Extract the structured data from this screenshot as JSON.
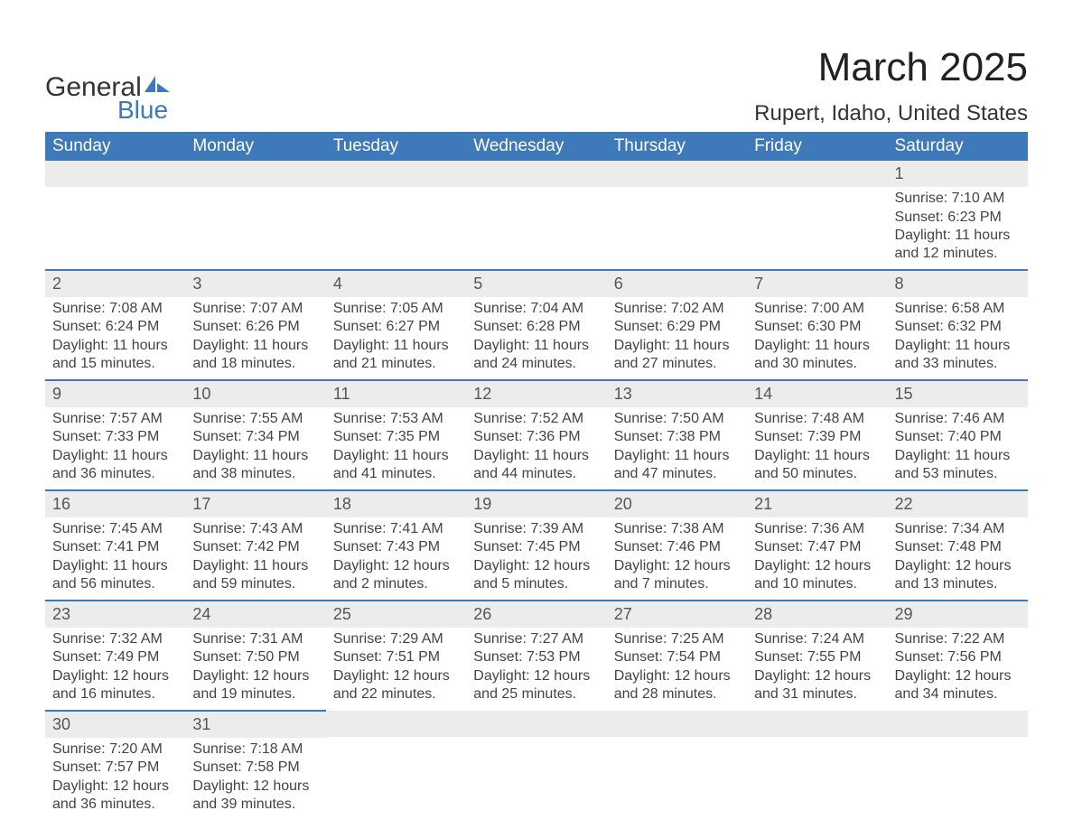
{
  "brand": {
    "name_a": "General",
    "name_b": "Blue",
    "accent": "#3e7ab9"
  },
  "title": "March 2025",
  "location": "Rupert, Idaho, United States",
  "colors": {
    "header_bg": "#3e7ab9",
    "header_text": "#ffffff",
    "daynum_bg": "#ececec",
    "text": "#444444",
    "row_divider": "#3e7ab9",
    "background": "#ffffff"
  },
  "typography": {
    "title_fontsize": 44,
    "location_fontsize": 24,
    "header_fontsize": 19,
    "body_fontsize": 16
  },
  "calendar": {
    "type": "calendar-table",
    "day_headers": [
      "Sunday",
      "Monday",
      "Tuesday",
      "Wednesday",
      "Thursday",
      "Friday",
      "Saturday"
    ],
    "weeks": [
      [
        null,
        null,
        null,
        null,
        null,
        null,
        {
          "n": "1",
          "sunrise": "7:10 AM",
          "sunset": "6:23 PM",
          "daylight": "11 hours and 12 minutes."
        }
      ],
      [
        {
          "n": "2",
          "sunrise": "7:08 AM",
          "sunset": "6:24 PM",
          "daylight": "11 hours and 15 minutes."
        },
        {
          "n": "3",
          "sunrise": "7:07 AM",
          "sunset": "6:26 PM",
          "daylight": "11 hours and 18 minutes."
        },
        {
          "n": "4",
          "sunrise": "7:05 AM",
          "sunset": "6:27 PM",
          "daylight": "11 hours and 21 minutes."
        },
        {
          "n": "5",
          "sunrise": "7:04 AM",
          "sunset": "6:28 PM",
          "daylight": "11 hours and 24 minutes."
        },
        {
          "n": "6",
          "sunrise": "7:02 AM",
          "sunset": "6:29 PM",
          "daylight": "11 hours and 27 minutes."
        },
        {
          "n": "7",
          "sunrise": "7:00 AM",
          "sunset": "6:30 PM",
          "daylight": "11 hours and 30 minutes."
        },
        {
          "n": "8",
          "sunrise": "6:58 AM",
          "sunset": "6:32 PM",
          "daylight": "11 hours and 33 minutes."
        }
      ],
      [
        {
          "n": "9",
          "sunrise": "7:57 AM",
          "sunset": "7:33 PM",
          "daylight": "11 hours and 36 minutes."
        },
        {
          "n": "10",
          "sunrise": "7:55 AM",
          "sunset": "7:34 PM",
          "daylight": "11 hours and 38 minutes."
        },
        {
          "n": "11",
          "sunrise": "7:53 AM",
          "sunset": "7:35 PM",
          "daylight": "11 hours and 41 minutes."
        },
        {
          "n": "12",
          "sunrise": "7:52 AM",
          "sunset": "7:36 PM",
          "daylight": "11 hours and 44 minutes."
        },
        {
          "n": "13",
          "sunrise": "7:50 AM",
          "sunset": "7:38 PM",
          "daylight": "11 hours and 47 minutes."
        },
        {
          "n": "14",
          "sunrise": "7:48 AM",
          "sunset": "7:39 PM",
          "daylight": "11 hours and 50 minutes."
        },
        {
          "n": "15",
          "sunrise": "7:46 AM",
          "sunset": "7:40 PM",
          "daylight": "11 hours and 53 minutes."
        }
      ],
      [
        {
          "n": "16",
          "sunrise": "7:45 AM",
          "sunset": "7:41 PM",
          "daylight": "11 hours and 56 minutes."
        },
        {
          "n": "17",
          "sunrise": "7:43 AM",
          "sunset": "7:42 PM",
          "daylight": "11 hours and 59 minutes."
        },
        {
          "n": "18",
          "sunrise": "7:41 AM",
          "sunset": "7:43 PM",
          "daylight": "12 hours and 2 minutes."
        },
        {
          "n": "19",
          "sunrise": "7:39 AM",
          "sunset": "7:45 PM",
          "daylight": "12 hours and 5 minutes."
        },
        {
          "n": "20",
          "sunrise": "7:38 AM",
          "sunset": "7:46 PM",
          "daylight": "12 hours and 7 minutes."
        },
        {
          "n": "21",
          "sunrise": "7:36 AM",
          "sunset": "7:47 PM",
          "daylight": "12 hours and 10 minutes."
        },
        {
          "n": "22",
          "sunrise": "7:34 AM",
          "sunset": "7:48 PM",
          "daylight": "12 hours and 13 minutes."
        }
      ],
      [
        {
          "n": "23",
          "sunrise": "7:32 AM",
          "sunset": "7:49 PM",
          "daylight": "12 hours and 16 minutes."
        },
        {
          "n": "24",
          "sunrise": "7:31 AM",
          "sunset": "7:50 PM",
          "daylight": "12 hours and 19 minutes."
        },
        {
          "n": "25",
          "sunrise": "7:29 AM",
          "sunset": "7:51 PM",
          "daylight": "12 hours and 22 minutes."
        },
        {
          "n": "26",
          "sunrise": "7:27 AM",
          "sunset": "7:53 PM",
          "daylight": "12 hours and 25 minutes."
        },
        {
          "n": "27",
          "sunrise": "7:25 AM",
          "sunset": "7:54 PM",
          "daylight": "12 hours and 28 minutes."
        },
        {
          "n": "28",
          "sunrise": "7:24 AM",
          "sunset": "7:55 PM",
          "daylight": "12 hours and 31 minutes."
        },
        {
          "n": "29",
          "sunrise": "7:22 AM",
          "sunset": "7:56 PM",
          "daylight": "12 hours and 34 minutes."
        }
      ],
      [
        {
          "n": "30",
          "sunrise": "7:20 AM",
          "sunset": "7:57 PM",
          "daylight": "12 hours and 36 minutes."
        },
        {
          "n": "31",
          "sunrise": "7:18 AM",
          "sunset": "7:58 PM",
          "daylight": "12 hours and 39 minutes."
        },
        null,
        null,
        null,
        null,
        null
      ]
    ],
    "labels": {
      "sunrise": "Sunrise: ",
      "sunset": "Sunset: ",
      "daylight": "Daylight: "
    }
  }
}
